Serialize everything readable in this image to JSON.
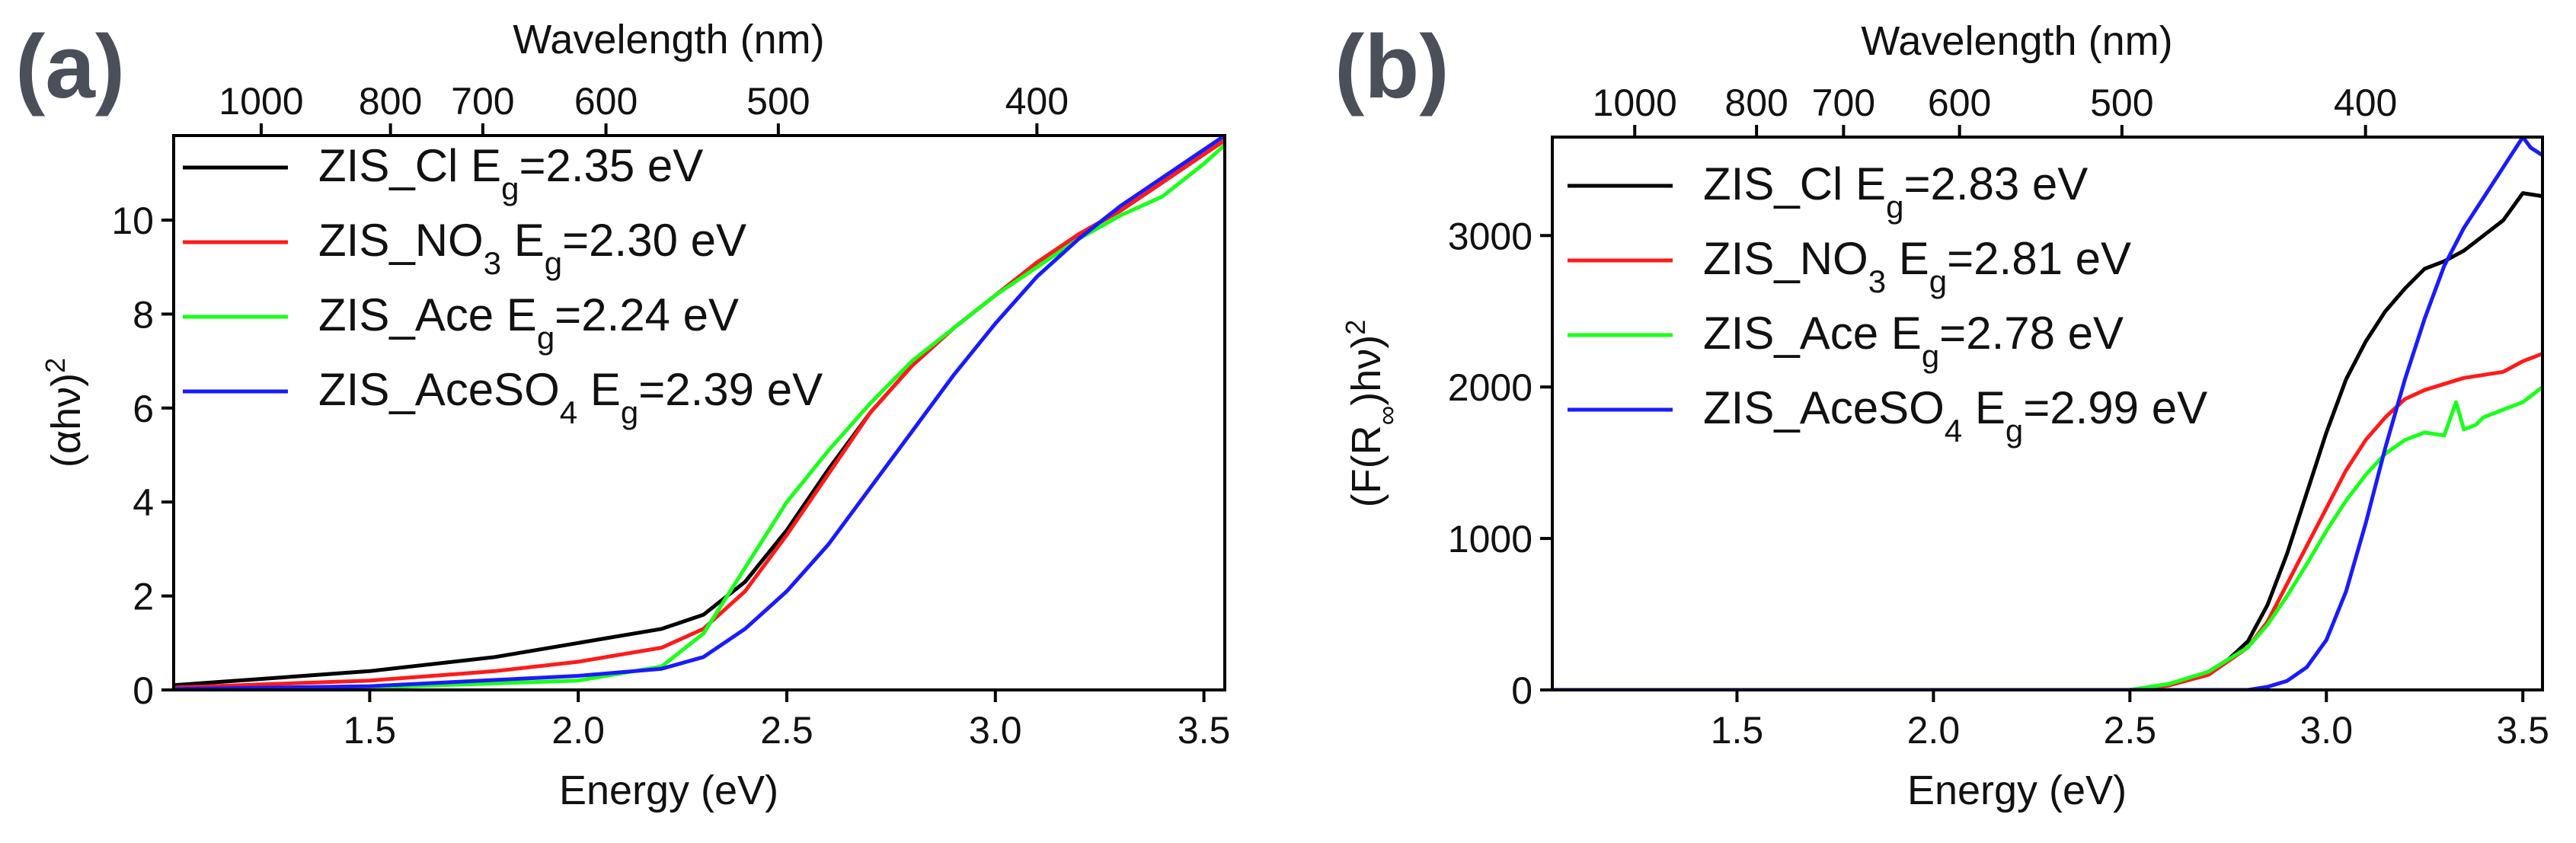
{
  "colors": {
    "ZIS_Cl": "#000000",
    "ZIS_NO3": "#ff1a1a",
    "ZIS_Ace": "#1aff1a",
    "ZIS_AceSO4": "#1a1aff"
  },
  "chart_data": [
    {
      "panel_label": "(a)",
      "type": "line",
      "title": "",
      "xlabel": "Energy (eV)",
      "ylabel": "(αhν)",
      "ylabel_sup": "2",
      "top_axis_label": "Wavelength (nm)",
      "xlim": [
        1.03,
        3.55
      ],
      "ylim": [
        0,
        11.8
      ],
      "x_ticks": [
        1.5,
        2.0,
        2.5,
        3.0,
        3.5
      ],
      "x_tick_labels": [
        "1.5",
        "2.0",
        "2.5",
        "3.0",
        "3.5"
      ],
      "y_ticks": [
        0,
        2,
        4,
        6,
        8,
        10
      ],
      "y_tick_labels": [
        "0",
        "2",
        "4",
        "6",
        "8",
        "10"
      ],
      "top_ticks_nm": [
        1000,
        800,
        700,
        600,
        500,
        400
      ],
      "top_tick_labels": [
        "1000",
        "800",
        "700",
        "600",
        "500",
        "400"
      ],
      "legend_position": "top-left",
      "series": [
        {
          "name": "ZIS_Cl",
          "label": "ZIS_Cl",
          "eg_text": "=2.35 eV",
          "x": [
            1.03,
            1.5,
            1.8,
            2.0,
            2.2,
            2.3,
            2.4,
            2.5,
            2.6,
            2.7,
            2.8,
            2.9,
            3.0,
            3.1,
            3.2,
            3.3,
            3.4,
            3.5,
            3.55
          ],
          "y": [
            0.1,
            0.4,
            0.7,
            1.0,
            1.3,
            1.6,
            2.3,
            3.4,
            4.7,
            5.9,
            6.9,
            7.7,
            8.4,
            9.1,
            9.7,
            10.2,
            10.8,
            11.4,
            11.7
          ]
        },
        {
          "name": "ZIS_NO3",
          "label": "ZIS_NO",
          "label_sub": "3",
          "eg_text": "=2.30 eV",
          "x": [
            1.03,
            1.5,
            1.8,
            2.0,
            2.2,
            2.3,
            2.4,
            2.5,
            2.6,
            2.7,
            2.8,
            2.9,
            3.0,
            3.1,
            3.2,
            3.3,
            3.4,
            3.5,
            3.55
          ],
          "y": [
            0.05,
            0.2,
            0.4,
            0.6,
            0.9,
            1.3,
            2.1,
            3.3,
            4.6,
            5.9,
            6.9,
            7.7,
            8.4,
            9.1,
            9.7,
            10.2,
            10.8,
            11.4,
            11.7
          ]
        },
        {
          "name": "ZIS_Ace",
          "label": "ZIS_Ace",
          "eg_text": "=2.24 eV",
          "x": [
            1.03,
            1.5,
            2.0,
            2.2,
            2.3,
            2.4,
            2.5,
            2.6,
            2.7,
            2.8,
            2.9,
            3.0,
            3.1,
            3.2,
            3.3,
            3.4,
            3.5,
            3.55
          ],
          "y": [
            0.02,
            0.05,
            0.2,
            0.5,
            1.2,
            2.6,
            4.0,
            5.1,
            6.1,
            7.0,
            7.7,
            8.4,
            9.0,
            9.6,
            10.1,
            10.5,
            11.2,
            11.6
          ]
        },
        {
          "name": "ZIS_AceSO4",
          "label": "ZIS_AceSO",
          "label_sub": "4",
          "eg_text": "=2.39 eV",
          "x": [
            1.03,
            1.5,
            2.0,
            2.2,
            2.3,
            2.4,
            2.5,
            2.6,
            2.7,
            2.8,
            2.9,
            3.0,
            3.1,
            3.2,
            3.3,
            3.4,
            3.5,
            3.55
          ],
          "y": [
            0.02,
            0.08,
            0.3,
            0.45,
            0.7,
            1.3,
            2.1,
            3.1,
            4.3,
            5.5,
            6.7,
            7.8,
            8.8,
            9.6,
            10.3,
            10.9,
            11.5,
            11.8
          ]
        }
      ]
    },
    {
      "panel_label": "(b)",
      "type": "line",
      "title": "",
      "xlabel": "Energy (eV)",
      "ylabel": "(F(R",
      "ylabel_sub": "∞",
      "ylabel_tail": ")hν)",
      "ylabel_sup": "2",
      "top_axis_label": "Wavelength (nm)",
      "xlim": [
        1.03,
        3.55
      ],
      "ylim": [
        0,
        3650
      ],
      "x_ticks": [
        1.5,
        2.0,
        2.5,
        3.0,
        3.5
      ],
      "x_tick_labels": [
        "1.5",
        "2.0",
        "2.5",
        "3.0",
        "3.5"
      ],
      "y_ticks": [
        0,
        1000,
        2000,
        3000
      ],
      "y_tick_labels": [
        "0",
        "1000",
        "2000",
        "3000"
      ],
      "top_ticks_nm": [
        1000,
        800,
        700,
        600,
        500,
        400
      ],
      "top_tick_labels": [
        "1000",
        "800",
        "700",
        "600",
        "500",
        "400"
      ],
      "legend_position": "top-left",
      "series": [
        {
          "name": "ZIS_Cl",
          "label": "ZIS_Cl",
          "eg_text": "=2.83 eV",
          "x": [
            1.03,
            2.5,
            2.6,
            2.7,
            2.75,
            2.8,
            2.85,
            2.9,
            2.95,
            3.0,
            3.05,
            3.1,
            3.15,
            3.2,
            3.25,
            3.3,
            3.35,
            3.4,
            3.45,
            3.5,
            3.55
          ],
          "y": [
            0,
            0,
            30,
            120,
            200,
            320,
            560,
            900,
            1300,
            1700,
            2050,
            2300,
            2500,
            2650,
            2780,
            2830,
            2900,
            3000,
            3100,
            3280,
            3260
          ]
        },
        {
          "name": "ZIS_NO3",
          "label": "ZIS_NO",
          "label_sub": "3",
          "eg_text": "=2.81 eV",
          "x": [
            1.03,
            2.5,
            2.6,
            2.7,
            2.8,
            2.85,
            2.9,
            2.95,
            3.0,
            3.05,
            3.1,
            3.15,
            3.2,
            3.25,
            3.3,
            3.35,
            3.4,
            3.45,
            3.5,
            3.55
          ],
          "y": [
            0,
            0,
            30,
            100,
            280,
            450,
            700,
            950,
            1200,
            1450,
            1650,
            1800,
            1920,
            1980,
            2020,
            2060,
            2080,
            2100,
            2170,
            2220
          ]
        },
        {
          "name": "ZIS_Ace",
          "label": "ZIS_Ace",
          "eg_text": "=2.78 eV",
          "x": [
            1.03,
            2.5,
            2.6,
            2.7,
            2.8,
            2.85,
            2.9,
            2.95,
            3.0,
            3.05,
            3.1,
            3.15,
            3.2,
            3.25,
            3.3,
            3.33,
            3.35,
            3.38,
            3.4,
            3.45,
            3.5,
            3.55
          ],
          "y": [
            0,
            0,
            40,
            120,
            280,
            430,
            620,
            830,
            1050,
            1250,
            1420,
            1560,
            1650,
            1700,
            1680,
            1900,
            1720,
            1750,
            1800,
            1850,
            1900,
            2000
          ]
        },
        {
          "name": "ZIS_AceSO4",
          "label": "ZIS_AceSO",
          "label_sub": "4",
          "eg_text": "=2.99 eV",
          "x": [
            1.03,
            2.8,
            2.85,
            2.9,
            2.95,
            3.0,
            3.05,
            3.1,
            3.15,
            3.2,
            3.25,
            3.3,
            3.35,
            3.4,
            3.45,
            3.5,
            3.52,
            3.55
          ],
          "y": [
            0,
            0,
            20,
            60,
            150,
            330,
            650,
            1100,
            1600,
            2050,
            2450,
            2800,
            3050,
            3250,
            3450,
            3650,
            3580,
            3530
          ]
        }
      ]
    }
  ]
}
